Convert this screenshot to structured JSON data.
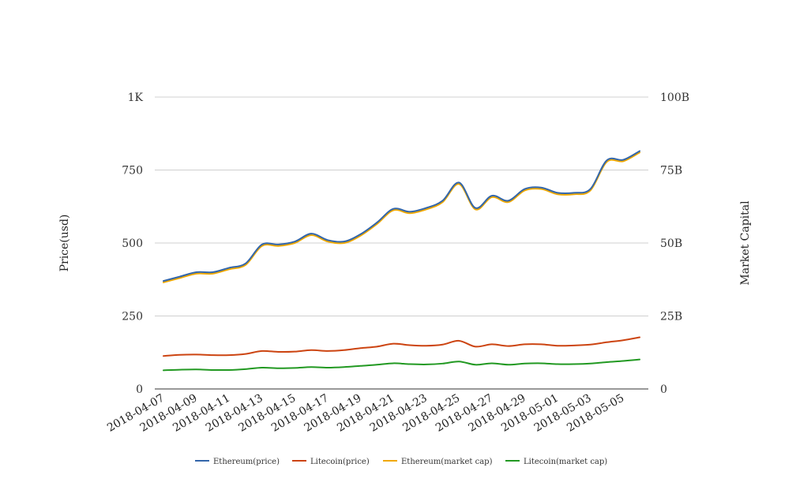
{
  "chart_data": {
    "type": "line",
    "x": [
      "2018-04-07",
      "2018-04-08",
      "2018-04-09",
      "2018-04-10",
      "2018-04-11",
      "2018-04-12",
      "2018-04-13",
      "2018-04-14",
      "2018-04-15",
      "2018-04-16",
      "2018-04-17",
      "2018-04-18",
      "2018-04-19",
      "2018-04-20",
      "2018-04-21",
      "2018-04-22",
      "2018-04-23",
      "2018-04-24",
      "2018-04-25",
      "2018-04-26",
      "2018-04-27",
      "2018-04-28",
      "2018-04-29",
      "2018-04-30",
      "2018-05-01",
      "2018-05-02",
      "2018-05-03",
      "2018-05-04",
      "2018-05-05",
      "2018-05-06"
    ],
    "x_tick_labels": [
      "2018-04-07",
      "2018-04-09",
      "2018-04-11",
      "2018-04-13",
      "2018-04-15",
      "2018-04-17",
      "2018-04-19",
      "2018-04-21",
      "2018-04-23",
      "2018-04-25",
      "2018-04-27",
      "2018-04-29",
      "2018-05-01",
      "2018-05-03",
      "2018-05-05"
    ],
    "ylabel": "Price(usd)",
    "y2label": "Market Capital",
    "ylim": [
      0,
      1000
    ],
    "y2lim": [
      0,
      100000000000
    ],
    "yticks": [
      "0",
      "250",
      "500",
      "750",
      "1K"
    ],
    "y2ticks": [
      "0",
      "25B",
      "50B",
      "75B",
      "100B"
    ],
    "grid": true,
    "legend_position": "bottom",
    "series": [
      {
        "name": "Ethereum(price)",
        "axis": "left",
        "color": "#3366aa",
        "values": [
          370,
          385,
          400,
          400,
          415,
          430,
          495,
          495,
          505,
          532,
          510,
          505,
          530,
          570,
          617,
          607,
          620,
          645,
          707,
          620,
          662,
          645,
          685,
          690,
          672,
          672,
          685,
          783,
          785,
          815
        ]
      },
      {
        "name": "Litecoin(price)",
        "axis": "left",
        "color": "#cc4411",
        "values": [
          113,
          117,
          118,
          116,
          116,
          120,
          130,
          127,
          128,
          133,
          130,
          133,
          140,
          145,
          155,
          150,
          148,
          152,
          165,
          145,
          153,
          147,
          153,
          153,
          148,
          149,
          152,
          160,
          167,
          177
        ]
      },
      {
        "name": "Ethereum(market cap)",
        "axis": "right",
        "color": "#f0a800",
        "values": [
          36500000000,
          38000000000,
          39500000000,
          39500000000,
          41000000000,
          42500000000,
          49000000000,
          49000000000,
          50000000000,
          52700000000,
          50500000000,
          50000000000,
          52500000000,
          56500000000,
          61200000000,
          60200000000,
          61500000000,
          64000000000,
          70200000000,
          61500000000,
          65700000000,
          64000000000,
          68000000000,
          68500000000,
          66700000000,
          66700000000,
          68000000000,
          77800000000,
          78000000000,
          81000000000
        ]
      },
      {
        "name": "Litecoin(market cap)",
        "axis": "right",
        "color": "#229922",
        "values": [
          6400000000,
          6600000000,
          6700000000,
          6500000000,
          6500000000,
          6800000000,
          7300000000,
          7100000000,
          7200000000,
          7500000000,
          7300000000,
          7500000000,
          7900000000,
          8300000000,
          8800000000,
          8500000000,
          8400000000,
          8700000000,
          9400000000,
          8300000000,
          8800000000,
          8300000000,
          8700000000,
          8800000000,
          8500000000,
          8500000000,
          8700000000,
          9200000000,
          9600000000,
          10100000000
        ]
      }
    ]
  }
}
